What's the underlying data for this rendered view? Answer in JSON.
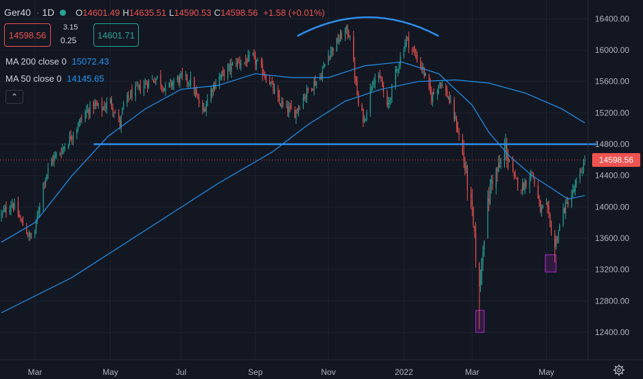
{
  "header": {
    "symbol": "Ger40",
    "interval": "1D",
    "open_label": "O",
    "open": "14601.49",
    "high_label": "H",
    "high": "14635.51",
    "low_label": "L",
    "low": "14590.53",
    "close_label": "C",
    "close": "14598.56",
    "change": "+1.58 (+0.01%)",
    "status_color": "#26a69a"
  },
  "trade": {
    "sell_price": "14598.56",
    "spread_top": "3.15",
    "spread_bottom": "0.25",
    "buy_price": "14601.71"
  },
  "indicators": [
    {
      "label": "MA 200 close 0",
      "value": "15072.43"
    },
    {
      "label": "MA 50 close 0",
      "value": "14145.65"
    }
  ],
  "last_price_tag": "14598.56",
  "colors": {
    "background": "#131722",
    "up": "#26a69a",
    "down": "#ef5350",
    "ma": "#2196f3",
    "drawing": "#2f8fee",
    "highlight": "#9c27b0"
  },
  "chart_data": {
    "type": "candlestick",
    "instrument": "Ger40",
    "interval": "1D",
    "y_ticks": [
      12400,
      12800,
      13200,
      13600,
      14000,
      14400,
      14800,
      15200,
      15600,
      16000,
      16400
    ],
    "y_tick_labels": [
      "12400.00",
      "12800.00",
      "13200.00",
      "13600.00",
      "14000.00",
      "14400.00",
      "14800.00",
      "15200.00",
      "15600.00",
      "16000.00",
      "16400.00"
    ],
    "ylim": [
      12050,
      16640
    ],
    "x_start": "2021-02-01",
    "x_end": "2022-06-04",
    "x_ticks": [
      {
        "label": "Mar",
        "date": "2021-03-01"
      },
      {
        "label": "May",
        "date": "2021-05-03"
      },
      {
        "label": "Jul",
        "date": "2021-07-01"
      },
      {
        "label": "Sep",
        "date": "2021-09-01"
      },
      {
        "label": "Nov",
        "date": "2021-11-01"
      },
      {
        "label": "2022",
        "date": "2022-01-03"
      },
      {
        "label": "Mar",
        "date": "2022-03-01"
      },
      {
        "label": "May",
        "date": "2022-05-02"
      }
    ],
    "price_path": [
      [
        "2021-02-01",
        13900
      ],
      [
        "2021-02-10",
        14050
      ],
      [
        "2021-02-18",
        13800
      ],
      [
        "2021-02-25",
        13600
      ],
      [
        "2021-03-01",
        13700
      ],
      [
        "2021-03-08",
        14300
      ],
      [
        "2021-03-15",
        14600
      ],
      [
        "2021-03-22",
        14700
      ],
      [
        "2021-03-29",
        14850
      ],
      [
        "2021-04-06",
        15050
      ],
      [
        "2021-04-12",
        15200
      ],
      [
        "2021-04-19",
        15300
      ],
      [
        "2021-04-26",
        15250
      ],
      [
        "2021-05-03",
        15350
      ],
      [
        "2021-05-11",
        15050
      ],
      [
        "2021-05-14",
        15300
      ],
      [
        "2021-05-21",
        15450
      ],
      [
        "2021-05-28",
        15520
      ],
      [
        "2021-06-04",
        15600
      ],
      [
        "2021-06-11",
        15650
      ],
      [
        "2021-06-18",
        15500
      ],
      [
        "2021-06-25",
        15600
      ],
      [
        "2021-07-02",
        15650
      ],
      [
        "2021-07-09",
        15600
      ],
      [
        "2021-07-19",
        15200
      ],
      [
        "2021-07-26",
        15500
      ],
      [
        "2021-08-02",
        15650
      ],
      [
        "2021-08-09",
        15750
      ],
      [
        "2021-08-16",
        15850
      ],
      [
        "2021-08-23",
        15850
      ],
      [
        "2021-08-30",
        15900
      ],
      [
        "2021-09-06",
        15750
      ],
      [
        "2021-09-13",
        15600
      ],
      [
        "2021-09-20",
        15350
      ],
      [
        "2021-09-27",
        15250
      ],
      [
        "2021-10-04",
        15200
      ],
      [
        "2021-10-11",
        15400
      ],
      [
        "2021-10-18",
        15550
      ],
      [
        "2021-10-25",
        15650
      ],
      [
        "2021-11-01",
        15950
      ],
      [
        "2021-11-08",
        16100
      ],
      [
        "2021-11-15",
        16250
      ],
      [
        "2021-11-19",
        16200
      ],
      [
        "2021-11-26",
        15300
      ],
      [
        "2021-12-01",
        15100
      ],
      [
        "2021-12-08",
        15650
      ],
      [
        "2021-12-15",
        15600
      ],
      [
        "2021-12-20",
        15250
      ],
      [
        "2021-12-27",
        15700
      ],
      [
        "2022-01-05",
        16150
      ],
      [
        "2022-01-12",
        15950
      ],
      [
        "2022-01-19",
        15750
      ],
      [
        "2022-01-26",
        15400
      ],
      [
        "2022-02-02",
        15600
      ],
      [
        "2022-02-09",
        15400
      ],
      [
        "2022-02-16",
        15050
      ],
      [
        "2022-02-22",
        14600
      ],
      [
        "2022-03-01",
        13900
      ],
      [
        "2022-03-07",
        12900
      ],
      [
        "2022-03-10",
        13550
      ],
      [
        "2022-03-17",
        14350
      ],
      [
        "2022-03-24",
        14500
      ],
      [
        "2022-03-29",
        14750
      ],
      [
        "2022-04-05",
        14350
      ],
      [
        "2022-04-12",
        14250
      ],
      [
        "2022-04-20",
        14450
      ],
      [
        "2022-04-27",
        13950
      ],
      [
        "2022-05-02",
        14000
      ],
      [
        "2022-05-09",
        13500
      ],
      [
        "2022-05-16",
        13950
      ],
      [
        "2022-05-23",
        14150
      ],
      [
        "2022-05-30",
        14400
      ],
      [
        "2022-06-03",
        14598.56
      ]
    ],
    "ma_lines": [
      {
        "name": "MA 200 close 0",
        "points": [
          [
            "2021-02-01",
            12650
          ],
          [
            "2021-04-01",
            13100
          ],
          [
            "2021-06-01",
            13700
          ],
          [
            "2021-08-01",
            14300
          ],
          [
            "2021-09-15",
            14700
          ],
          [
            "2021-10-15",
            15050
          ],
          [
            "2021-11-15",
            15350
          ],
          [
            "2021-12-15",
            15500
          ],
          [
            "2022-01-15",
            15600
          ],
          [
            "2022-02-15",
            15620
          ],
          [
            "2022-03-15",
            15580
          ],
          [
            "2022-04-15",
            15450
          ],
          [
            "2022-05-15",
            15250
          ],
          [
            "2022-06-03",
            15072.43
          ]
        ]
      },
      {
        "name": "MA 50 close 0",
        "points": [
          [
            "2021-02-01",
            13550
          ],
          [
            "2021-03-01",
            13800
          ],
          [
            "2021-04-01",
            14400
          ],
          [
            "2021-05-01",
            14900
          ],
          [
            "2021-06-01",
            15250
          ],
          [
            "2021-07-01",
            15500
          ],
          [
            "2021-08-01",
            15550
          ],
          [
            "2021-09-01",
            15700
          ],
          [
            "2021-10-01",
            15650
          ],
          [
            "2021-11-01",
            15650
          ],
          [
            "2021-12-01",
            15800
          ],
          [
            "2022-01-01",
            15850
          ],
          [
            "2022-02-01",
            15700
          ],
          [
            "2022-03-01",
            15300
          ],
          [
            "2022-03-15",
            14950
          ],
          [
            "2022-04-01",
            14650
          ],
          [
            "2022-04-20",
            14400
          ],
          [
            "2022-05-05",
            14250
          ],
          [
            "2022-05-20",
            14100
          ],
          [
            "2022-06-03",
            14145.65
          ]
        ]
      }
    ],
    "annotations": {
      "horizontal_level": {
        "y": 14800,
        "from": "2021-04-19",
        "to": "2022-06-13"
      },
      "arc": {
        "from": "2021-10-06",
        "to": "2022-02-01",
        "base": 16180,
        "peak": 16420
      },
      "boxes": [
        {
          "from": "2022-03-04",
          "to": "2022-03-11",
          "y_low": 12400,
          "y_high": 12680
        },
        {
          "from": "2022-05-01",
          "to": "2022-05-10",
          "y_low": 13170,
          "y_high": 13390
        }
      ]
    }
  }
}
